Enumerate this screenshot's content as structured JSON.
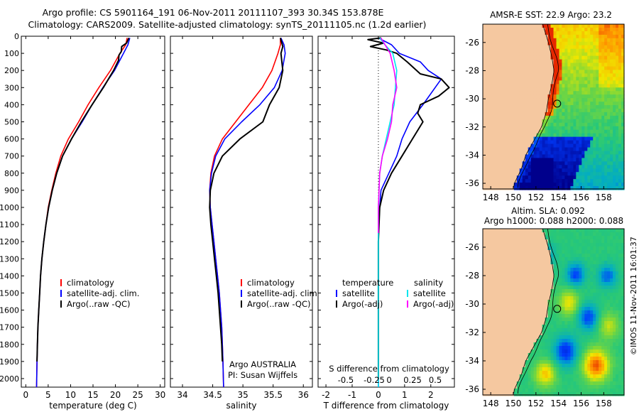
{
  "header": {
    "title_line1": "Argo profile: CS 5901164_191 06-Nov-2011 20111107_393 30.34S 153.878E",
    "title_line2": "Climatology: CARS2009. Satellite-adjusted climatology: synTS_20111105.nc (1.2d earlier)"
  },
  "stamp": "©IMOS 11-Nov-2011 16:01:37",
  "colors": {
    "climatology": "#ff0000",
    "satellite": "#0000ff",
    "argo": "#000000",
    "salinity_satellite": "#00e5ee",
    "salinity_argo": "#ff00ff",
    "land": "#f5c8a0"
  },
  "chart_data": [
    {
      "id": "temperature",
      "type": "line",
      "xlabel": "temperature (deg C)",
      "xlim": [
        -1,
        31
      ],
      "xticks": [
        0,
        5,
        10,
        15,
        20,
        25,
        30
      ],
      "xtick_labels": [
        "0",
        "5",
        "10",
        "15",
        "20",
        "25",
        "30"
      ],
      "ylim": [
        2050,
        0
      ],
      "yticks": [
        0,
        100,
        200,
        300,
        400,
        500,
        600,
        700,
        800,
        900,
        1000,
        1100,
        1200,
        1300,
        1400,
        1500,
        1600,
        1700,
        1800,
        1900,
        2000
      ],
      "legend": [
        "climatology",
        "satellite-adj. clim.",
        "Argo(..raw -QC)"
      ],
      "series": [
        {
          "name": "climatology",
          "color": "#ff0000",
          "x": [
            22.6,
            22.3,
            21.0,
            18.9,
            16.3,
            13.9,
            11.8,
            9.5,
            7.8,
            6.7,
            5.8,
            5.0,
            4.5,
            4.0,
            3.6,
            3.3,
            3.1,
            2.9,
            2.7,
            2.6,
            2.5,
            2.4
          ],
          "y": [
            10,
            50,
            100,
            200,
            300,
            400,
            500,
            600,
            700,
            800,
            900,
            1000,
            1100,
            1200,
            1300,
            1400,
            1500,
            1600,
            1700,
            1800,
            1900,
            2050
          ]
        },
        {
          "name": "satellite-adj. clim.",
          "color": "#0000ff",
          "x": [
            23.2,
            22.8,
            21.8,
            19.8,
            17.2,
            14.8,
            12.6,
            10.2,
            8.2,
            6.9,
            5.9,
            5.1,
            4.5,
            4.0,
            3.6,
            3.3,
            3.1,
            2.9,
            2.7,
            2.6,
            2.5,
            2.4
          ],
          "y": [
            10,
            50,
            100,
            200,
            300,
            400,
            500,
            600,
            700,
            800,
            900,
            1000,
            1100,
            1200,
            1300,
            1400,
            1500,
            1600,
            1700,
            1800,
            1900,
            2050
          ]
        },
        {
          "name": "Argo(..raw -QC)",
          "color": "#000000",
          "x": [
            23.0,
            22.5,
            21.4,
            21.3,
            20.8,
            20.7,
            19.6,
            17.3,
            14.8,
            12.4,
            10.2,
            8.2,
            6.9,
            5.9,
            5.1,
            4.5,
            4.0,
            3.6,
            3.3,
            3.1,
            2.9,
            2.7,
            2.6,
            2.5
          ],
          "y": [
            10,
            40,
            60,
            90,
            110,
            140,
            200,
            300,
            400,
            500,
            600,
            700,
            800,
            900,
            1000,
            1100,
            1200,
            1300,
            1400,
            1500,
            1600,
            1700,
            1800,
            1900
          ]
        }
      ]
    },
    {
      "id": "salinity",
      "type": "line",
      "xlabel": "salinity",
      "xlim": [
        33.8,
        36.15
      ],
      "xticks": [
        34,
        34.5,
        35,
        35.5,
        36
      ],
      "xtick_labels": [
        "34",
        "34.5",
        "35",
        "35.5",
        "36"
      ],
      "ylim": [
        2050,
        0
      ],
      "legend": [
        "climatology",
        "satellite-adj. clim.",
        "Argo(..raw -QC)"
      ],
      "annotation": [
        "Argo AUSTRALIA",
        "PI: Susan Wijffels"
      ],
      "series": [
        {
          "name": "climatology",
          "color": "#ff0000",
          "x": [
            35.62,
            35.62,
            35.58,
            35.48,
            35.32,
            35.1,
            34.88,
            34.66,
            34.53,
            34.47,
            34.45,
            34.46,
            34.49,
            34.52,
            34.55,
            34.58,
            34.61,
            34.63,
            34.65,
            34.66,
            34.67,
            34.68
          ],
          "y": [
            10,
            50,
            100,
            200,
            300,
            400,
            500,
            600,
            700,
            800,
            900,
            1000,
            1100,
            1200,
            1300,
            1400,
            1500,
            1600,
            1700,
            1800,
            1900,
            2050
          ]
        },
        {
          "name": "satellite-adj. clim.",
          "color": "#0000ff",
          "x": [
            35.63,
            35.68,
            35.7,
            35.65,
            35.52,
            35.28,
            34.98,
            34.7,
            34.55,
            34.48,
            34.45,
            34.46,
            34.49,
            34.52,
            34.55,
            34.58,
            34.61,
            34.63,
            34.65,
            34.66,
            34.67,
            34.68
          ],
          "y": [
            10,
            50,
            100,
            200,
            300,
            400,
            500,
            600,
            700,
            800,
            900,
            1000,
            1100,
            1200,
            1300,
            1400,
            1500,
            1600,
            1700,
            1800,
            1900,
            2050
          ]
        },
        {
          "name": "Argo(..raw -QC)",
          "color": "#000000",
          "x": [
            35.62,
            35.66,
            35.63,
            35.66,
            35.6,
            35.44,
            35.33,
            34.95,
            34.66,
            34.52,
            34.46,
            34.45,
            34.47,
            34.5,
            34.53,
            34.56,
            34.59,
            34.61,
            34.63,
            34.65,
            34.66
          ],
          "y": [
            10,
            60,
            100,
            200,
            300,
            400,
            500,
            600,
            700,
            800,
            900,
            1000,
            1100,
            1200,
            1300,
            1400,
            1500,
            1600,
            1700,
            1800,
            1900
          ]
        }
      ]
    },
    {
      "id": "difference",
      "type": "line",
      "xlabel": "T difference from climatology",
      "xlabel_top": "S difference from climatology",
      "xlim": [
        -2.3,
        2.9
      ],
      "xticks": [
        -2,
        -1,
        0,
        1,
        2
      ],
      "xtick_labels": [
        "-2",
        "-1",
        "0",
        "1",
        "2"
      ],
      "s_tick_labels": [
        "-0.5",
        "-0.25",
        "0",
        "0.25",
        "0.5"
      ],
      "ylim": [
        2050,
        0
      ],
      "zero_line": "dotted",
      "legend_temperature": {
        "heading": "temperature",
        "items": [
          "satellite",
          "Argo(-adj)"
        ]
      },
      "legend_salinity": {
        "heading": "salinity",
        "items": [
          "satellite",
          "Argo(-adj)"
        ]
      },
      "series": [
        {
          "name": "temperature satellite",
          "color": "#0000ff",
          "x": [
            0.0,
            0.5,
            0.8,
            1.6,
            1.9,
            2.4,
            1.7,
            1.2,
            0.9,
            0.7,
            0.4,
            0.1,
            0.05,
            0.02,
            0.0,
            0.0,
            0.0,
            0.0,
            0.0,
            0.0,
            0.0
          ],
          "y": [
            10,
            50,
            100,
            150,
            200,
            250,
            400,
            500,
            600,
            700,
            800,
            900,
            1000,
            1100,
            1200,
            1400,
            1600,
            1800,
            1900,
            2000,
            2050
          ]
        },
        {
          "name": "temperature Argo(-adj)",
          "color": "#000000",
          "x": [
            0.1,
            -0.4,
            0.2,
            -0.3,
            0.3,
            0.7,
            1.1,
            1.6,
            2.4,
            2.7,
            2.3,
            1.6,
            1.5,
            1.7,
            1.3,
            0.9,
            0.5,
            0.2,
            0.05,
            0.0,
            0.0,
            0.0,
            0.0
          ],
          "y": [
            10,
            20,
            40,
            60,
            80,
            100,
            150,
            220,
            250,
            300,
            350,
            400,
            450,
            500,
            600,
            700,
            800,
            900,
            1000,
            1200,
            1500,
            1800,
            2000
          ]
        },
        {
          "name": "salinity satellite",
          "color": "#00e5ee",
          "x": [
            0.05,
            0.25,
            0.55,
            0.7,
            0.65,
            0.6,
            0.45,
            0.3,
            0.15,
            0.05,
            0.0,
            0.0,
            0.0,
            0.0,
            0.0,
            0.0
          ],
          "y": [
            10,
            50,
            100,
            200,
            300,
            400,
            500,
            600,
            700,
            800,
            1000,
            1300,
            1600,
            1800,
            2000,
            2050
          ]
        },
        {
          "name": "salinity Argo(-adj)",
          "color": "#ff00ff",
          "x": [
            0.1,
            0.45,
            0.6,
            0.7,
            0.55,
            0.5,
            0.35,
            0.15,
            0.05,
            0.0,
            0.0,
            0.0
          ],
          "y": [
            10,
            100,
            200,
            300,
            400,
            500,
            600,
            700,
            800,
            1000,
            1100,
            1150
          ]
        }
      ]
    },
    {
      "id": "sst_map",
      "type": "heatmap",
      "title": "AMSR-E SST: 22.9 Argo: 23.2",
      "xticks": [
        148,
        150,
        152,
        154,
        156,
        158
      ],
      "xtick_labels": [
        "148",
        "150",
        "152",
        "154",
        "156",
        "158"
      ],
      "yticks": [
        -26,
        -28,
        -30,
        -32,
        -34,
        -36
      ],
      "ytick_labels": [
        "-26",
        "-28",
        "-30",
        "-32",
        "-34",
        "-36"
      ],
      "xlim": [
        147.3,
        159.8
      ],
      "ylim": [
        -36.4,
        -24.7
      ],
      "float_position": {
        "lon": 153.878,
        "lat": -30.34
      }
    },
    {
      "id": "sla_map",
      "type": "heatmap",
      "title_line1": "Altim. SLA: 0.092",
      "title_line2": "Argo h1000: 0.088 h2000: 0.088",
      "xticks": [
        148,
        150,
        152,
        154,
        156,
        158
      ],
      "xtick_labels": [
        "148",
        "150",
        "152",
        "154",
        "156",
        "158"
      ],
      "yticks": [
        -26,
        -28,
        -30,
        -32,
        -34,
        -36
      ],
      "ytick_labels": [
        "-26",
        "-28",
        "-30",
        "-32",
        "-34",
        "-36"
      ],
      "xlim": [
        147.3,
        159.8
      ],
      "ylim": [
        -36.4,
        -24.7
      ],
      "float_position": {
        "lon": 153.878,
        "lat": -30.34
      }
    }
  ]
}
